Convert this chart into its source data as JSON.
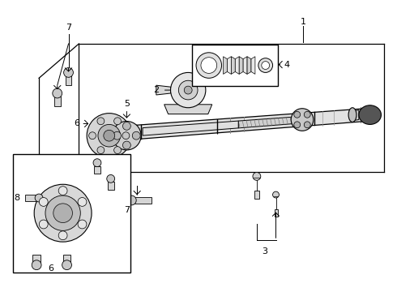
{
  "bg_color": "#ffffff",
  "line_color": "#000000",
  "fig_width": 4.9,
  "fig_height": 3.6,
  "dpi": 100,
  "gray_light": "#e8e8e8",
  "gray_mid": "#cccccc",
  "gray_dark": "#a0a0a0",
  "shaft_color": "#d8d8d8",
  "label_fs": 8,
  "label_fs_small": 7
}
